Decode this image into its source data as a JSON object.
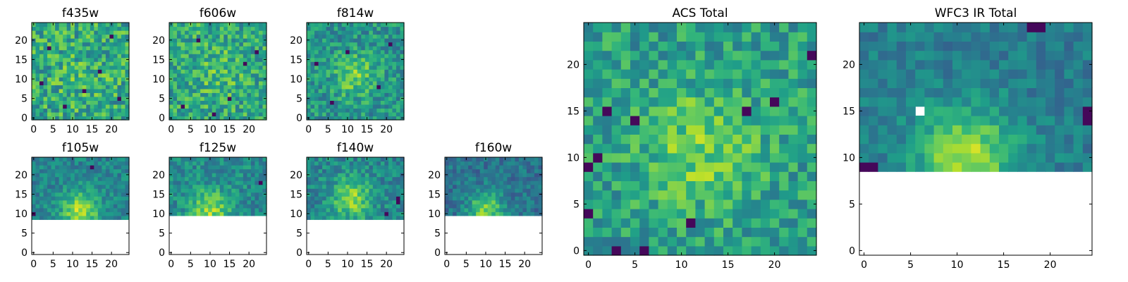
{
  "chart_data": [
    {
      "type": "heatmap",
      "title": "f435w",
      "xlim": [
        0,
        24
      ],
      "ylim": [
        0,
        24
      ],
      "xticks": [
        0,
        5,
        10,
        15,
        20
      ],
      "yticks": [
        0,
        5,
        10,
        15,
        20
      ],
      "colormap": "viridis",
      "valid_rows_from": 0,
      "blob": {
        "cx": 12,
        "cy": 11,
        "amp": 0.06,
        "s2": 60
      },
      "noise": 0.46,
      "base": 0.6,
      "seed": 11,
      "dark_cells": [
        [
          4,
          18
        ],
        [
          8,
          3
        ],
        [
          13,
          7
        ],
        [
          17,
          12
        ],
        [
          20,
          21
        ],
        [
          2,
          9
        ],
        [
          22,
          5
        ]
      ],
      "masked_cells": []
    },
    {
      "type": "heatmap",
      "title": "f606w",
      "xlim": [
        0,
        24
      ],
      "ylim": [
        0,
        24
      ],
      "xticks": [
        0,
        5,
        10,
        15,
        20
      ],
      "yticks": [
        0,
        5,
        10,
        15,
        20
      ],
      "colormap": "viridis",
      "valid_rows_from": 0,
      "blob": {
        "cx": 12,
        "cy": 12,
        "amp": 0.1,
        "s2": 40
      },
      "noise": 0.42,
      "base": 0.6,
      "seed": 23,
      "dark_cells": [
        [
          3,
          3
        ],
        [
          7,
          20
        ],
        [
          15,
          5
        ],
        [
          19,
          14
        ],
        [
          11,
          1
        ],
        [
          22,
          17
        ]
      ],
      "masked_cells": []
    },
    {
      "type": "heatmap",
      "title": "f814w",
      "xlim": [
        0,
        24
      ],
      "ylim": [
        0,
        24
      ],
      "xticks": [
        0,
        5,
        10,
        15,
        20
      ],
      "yticks": [
        0,
        5,
        10,
        15,
        20
      ],
      "colormap": "viridis",
      "valid_rows_from": 0,
      "blob": {
        "cx": 12,
        "cy": 11,
        "amp": 0.25,
        "s2": 30
      },
      "noise": 0.36,
      "base": 0.52,
      "seed": 37,
      "dark_cells": [
        [
          6,
          4
        ],
        [
          10,
          17
        ],
        [
          18,
          8
        ],
        [
          21,
          19
        ],
        [
          2,
          14
        ]
      ],
      "masked_cells": []
    },
    {
      "type": "heatmap",
      "title": "f105w",
      "xlim": [
        0,
        24
      ],
      "ylim": [
        0,
        24
      ],
      "xticks": [
        0,
        5,
        10,
        15,
        20
      ],
      "yticks": [
        0,
        5,
        10,
        15,
        20
      ],
      "colormap": "viridis",
      "valid_rows_from": 9,
      "blob": {
        "cx": 12,
        "cy": 11,
        "amp": 0.42,
        "s2": 24
      },
      "noise": 0.26,
      "base": 0.45,
      "seed": 41,
      "dark_cells": [
        [
          0,
          10
        ],
        [
          15,
          22
        ]
      ],
      "masked_cells": []
    },
    {
      "type": "heatmap",
      "title": "f125w",
      "xlim": [
        0,
        24
      ],
      "ylim": [
        0,
        24
      ],
      "xticks": [
        0,
        5,
        10,
        15,
        20
      ],
      "yticks": [
        0,
        5,
        10,
        15,
        20
      ],
      "colormap": "viridis",
      "valid_rows_from": 10,
      "blob": {
        "cx": 10,
        "cy": 11,
        "amp": 0.35,
        "s2": 26
      },
      "noise": 0.3,
      "base": 0.48,
      "seed": 53,
      "dark_cells": [
        [
          23,
          18
        ]
      ],
      "masked_cells": []
    },
    {
      "type": "heatmap",
      "title": "f140w",
      "xlim": [
        0,
        24
      ],
      "ylim": [
        0,
        24
      ],
      "xticks": [
        0,
        5,
        10,
        15,
        20
      ],
      "yticks": [
        0,
        5,
        10,
        15,
        20
      ],
      "colormap": "viridis",
      "valid_rows_from": 9,
      "blob": {
        "cx": 11,
        "cy": 14,
        "amp": 0.38,
        "s2": 26
      },
      "noise": 0.3,
      "base": 0.46,
      "seed": 67,
      "dark_cells": [
        [
          20,
          10
        ],
        [
          23,
          13
        ],
        [
          23,
          14
        ]
      ],
      "masked_cells": []
    },
    {
      "type": "heatmap",
      "title": "f160w",
      "xlim": [
        0,
        24
      ],
      "ylim": [
        0,
        24
      ],
      "xticks": [
        0,
        5,
        10,
        15,
        20
      ],
      "yticks": [
        0,
        5,
        10,
        15,
        20
      ],
      "colormap": "viridis",
      "valid_rows_from": 10,
      "blob": {
        "cx": 10,
        "cy": 11,
        "amp": 0.42,
        "s2": 22
      },
      "noise": 0.26,
      "base": 0.38,
      "seed": 79,
      "dark_cells": [],
      "masked_cells": []
    },
    {
      "type": "heatmap",
      "title": "ACS Total",
      "xlim": [
        0,
        24
      ],
      "ylim": [
        0,
        24
      ],
      "xticks": [
        0,
        5,
        10,
        15,
        20
      ],
      "yticks": [
        0,
        5,
        10,
        15,
        20
      ],
      "colormap": "viridis",
      "valid_rows_from": 0,
      "blob": {
        "cx": 12,
        "cy": 11,
        "amp": 0.22,
        "s2": 40
      },
      "noise": 0.36,
      "base": 0.56,
      "seed": 97,
      "dark_cells": [
        [
          3,
          0
        ],
        [
          6,
          0
        ],
        [
          2,
          15
        ],
        [
          5,
          14
        ],
        [
          0,
          9
        ],
        [
          1,
          10
        ],
        [
          17,
          15
        ],
        [
          20,
          16
        ],
        [
          24,
          21
        ],
        [
          11,
          3
        ],
        [
          0,
          4
        ]
      ],
      "masked_cells": []
    },
    {
      "type": "heatmap",
      "title": "WFC3 IR Total",
      "xlim": [
        0,
        24
      ],
      "ylim": [
        0,
        24
      ],
      "xticks": [
        0,
        5,
        10,
        15,
        20
      ],
      "yticks": [
        0,
        5,
        10,
        15,
        20
      ],
      "colormap": "viridis",
      "valid_rows_from": 9,
      "blob": {
        "cx": 11,
        "cy": 10,
        "amp": 0.45,
        "s2": 28
      },
      "noise": 0.22,
      "base": 0.42,
      "seed": 131,
      "dark_cells": [
        [
          0,
          9
        ],
        [
          1,
          9
        ],
        [
          18,
          24
        ],
        [
          19,
          24
        ],
        [
          22,
          8
        ],
        [
          23,
          8
        ],
        [
          24,
          14
        ],
        [
          24,
          15
        ]
      ],
      "masked_cells": [
        [
          6,
          15
        ]
      ]
    }
  ]
}
